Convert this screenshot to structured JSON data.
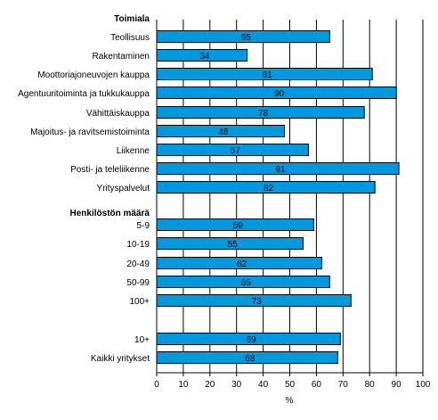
{
  "chart_data": {
    "type": "bar",
    "orientation": "horizontal",
    "bar_color": "#0099e0",
    "bar_edge_color": "#000000",
    "xlabel": "%",
    "xlim": [
      0,
      100
    ],
    "xticks": [
      0,
      10,
      20,
      30,
      40,
      50,
      60,
      70,
      80,
      90,
      100
    ],
    "grid": "vertical",
    "groups": [
      {
        "label": "Toimiala",
        "categories": [
          "Teollisuus",
          "Rakentaminen",
          "Moottoriajoneuvojen kauppa",
          "Agentuuritoiminta ja tukkukauppa",
          "Vähittäiskauppa",
          "Majoitus- ja ravitsemistoiminta",
          "Liikenne",
          "Posti- ja teleliikenne",
          "Yrityspalvelut"
        ],
        "values": [
          65,
          34,
          81,
          90,
          78,
          48,
          57,
          91,
          82
        ]
      },
      {
        "label": "Henkilöstön määrä",
        "categories": [
          "5-9",
          "10-19",
          "20-49",
          "50-99",
          "100+"
        ],
        "values": [
          59,
          55,
          62,
          65,
          73
        ]
      },
      {
        "label": "",
        "categories": [
          "10+",
          "Kaikki yritykset"
        ],
        "values": [
          69,
          68
        ]
      }
    ]
  }
}
